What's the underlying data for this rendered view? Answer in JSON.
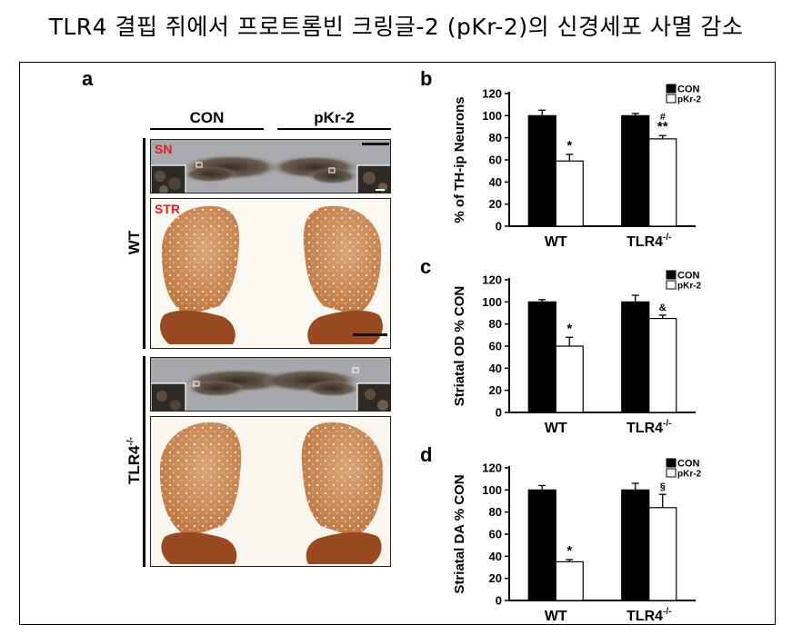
{
  "page": {
    "title": "TLR4 결핍 쥐에서 프로트롬빈 크링글-2 (pKr-2)의 신경세포 사멸 감소"
  },
  "panel_a": {
    "letter": "a",
    "col_labels": [
      "CON",
      "pKr-2"
    ],
    "row_labels": [
      "WT",
      "TLR4"
    ],
    "row_label_superscript": "-/-",
    "region_labels": {
      "sn": "SN",
      "str": "STR"
    }
  },
  "colors": {
    "con_bar": "#000000",
    "pkr2_bar": "#ffffff",
    "region_label": "#e11b1b",
    "sn_bg": "#a4a6a8",
    "striatum": "#d08e58"
  },
  "chart_data": [
    {
      "type": "bar",
      "panel": "b",
      "ylabel": "% of TH-ip Neurons",
      "ylim": [
        0,
        120
      ],
      "yticks": [
        0,
        20,
        40,
        60,
        80,
        100,
        120
      ],
      "categories": [
        "WT",
        "TLR4"
      ],
      "category_superscript": [
        "",
        "-/-"
      ],
      "legend": "top-right",
      "series": [
        {
          "name": "CON",
          "values": [
            100,
            100
          ],
          "errors": [
            5,
            2
          ]
        },
        {
          "name": "pKr-2",
          "values": [
            59,
            79
          ],
          "errors": [
            6,
            3
          ]
        }
      ],
      "annotations": [
        {
          "category": 0,
          "series": 1,
          "lines": [
            "*"
          ]
        },
        {
          "category": 1,
          "series": 1,
          "lines": [
            "#",
            "**"
          ]
        }
      ]
    },
    {
      "type": "bar",
      "panel": "c",
      "ylabel": "Striatal OD % CON",
      "ylim": [
        0,
        120
      ],
      "yticks": [
        0,
        20,
        40,
        60,
        80,
        100,
        120
      ],
      "categories": [
        "WT",
        "TLR4"
      ],
      "category_superscript": [
        "",
        "-/-"
      ],
      "legend": "top-right",
      "series": [
        {
          "name": "CON",
          "values": [
            100,
            100
          ],
          "errors": [
            2,
            6
          ]
        },
        {
          "name": "pKr-2",
          "values": [
            60,
            85
          ],
          "errors": [
            8,
            3
          ]
        }
      ],
      "annotations": [
        {
          "category": 0,
          "series": 1,
          "lines": [
            "*"
          ]
        },
        {
          "category": 1,
          "series": 1,
          "lines": [
            "&"
          ]
        }
      ]
    },
    {
      "type": "bar",
      "panel": "d",
      "ylabel": "Striatal DA % CON",
      "ylim": [
        0,
        120
      ],
      "yticks": [
        0,
        20,
        40,
        60,
        80,
        100,
        120
      ],
      "categories": [
        "WT",
        "TLR4"
      ],
      "category_superscript": [
        "",
        "-/-"
      ],
      "legend": "top-right",
      "series": [
        {
          "name": "CON",
          "values": [
            100,
            100
          ],
          "errors": [
            4,
            6
          ]
        },
        {
          "name": "pKr-2",
          "values": [
            35,
            84
          ],
          "errors": [
            2,
            12
          ]
        }
      ],
      "annotations": [
        {
          "category": 0,
          "series": 1,
          "lines": [
            "*"
          ]
        },
        {
          "category": 1,
          "series": 1,
          "lines": [
            "§"
          ]
        }
      ]
    }
  ]
}
